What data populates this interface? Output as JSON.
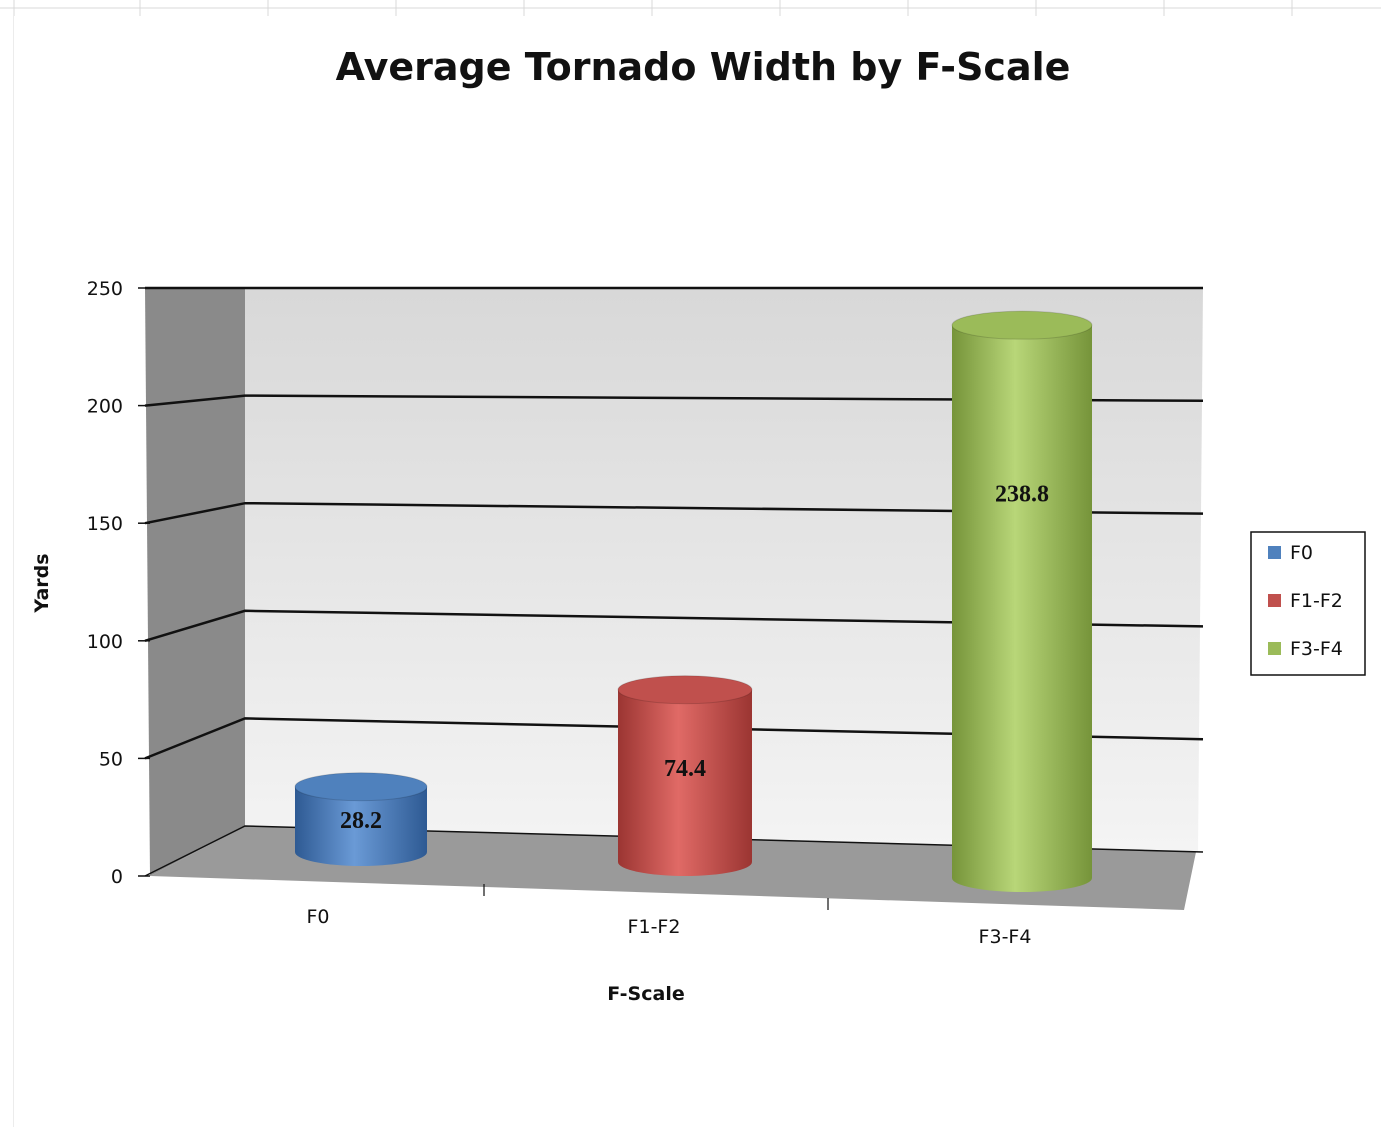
{
  "chart_data": {
    "type": "bar",
    "title": "Average Tornado Width by F-Scale",
    "categories": [
      "F0",
      "F1-F2",
      "F3-F4"
    ],
    "values": [
      28.2,
      74.4,
      238.8
    ],
    "data_labels": [
      "28.2",
      "74.4",
      "238.8"
    ],
    "xlabel": "F-Scale",
    "ylabel": "Yards",
    "ylim": [
      0,
      250
    ],
    "yticks": [
      "0",
      "50",
      "100",
      "150",
      "200",
      "250"
    ],
    "grid": true,
    "style": "3d-cylinder",
    "legend_position": "right",
    "series": [
      {
        "name": "F0",
        "color": "#4f81bd"
      },
      {
        "name": "F1-F2",
        "color": "#c0504d"
      },
      {
        "name": "F3-F4",
        "color": "#9bbb59"
      }
    ]
  }
}
